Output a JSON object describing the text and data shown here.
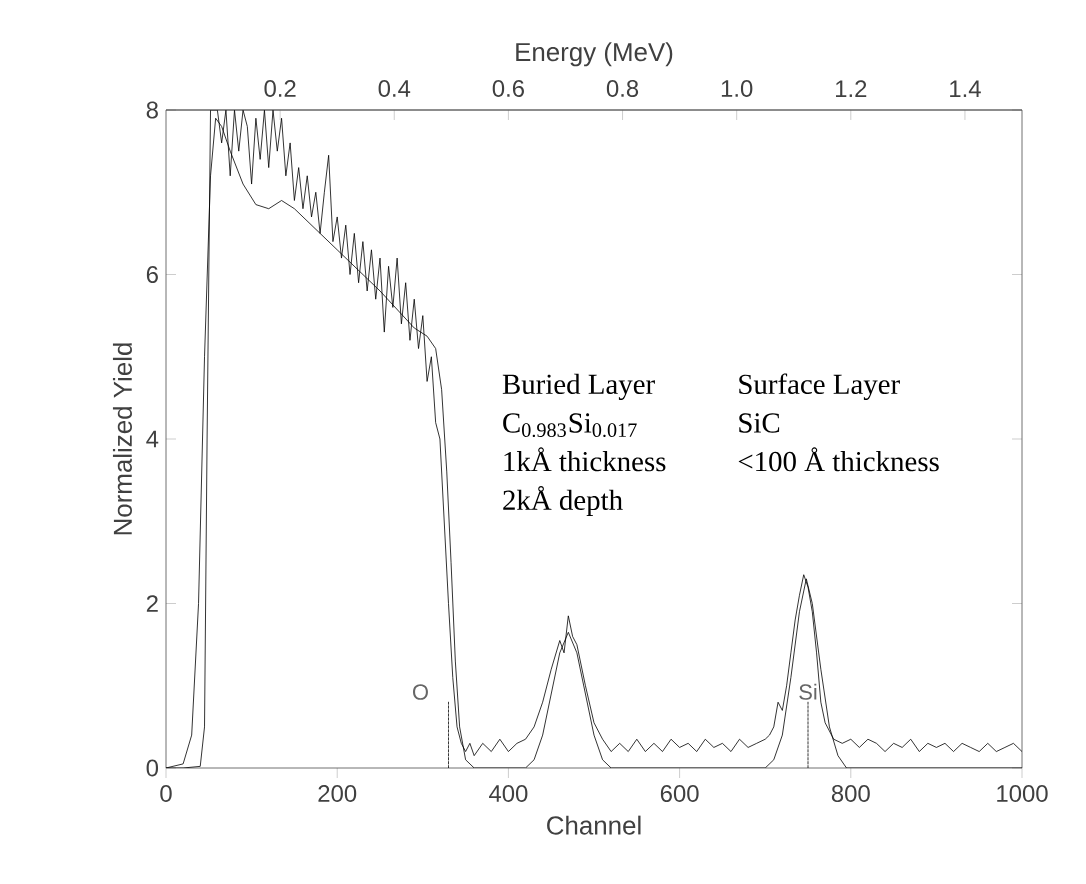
{
  "chart_data": {
    "type": "line",
    "xlabel": "Channel",
    "ylabel": "Normalized Yield",
    "x2label": "Energy (MeV)",
    "xlim": [
      0,
      1000
    ],
    "ylim": [
      0,
      8
    ],
    "xticks": [
      0,
      200,
      400,
      600,
      800,
      1000
    ],
    "yticks": [
      0,
      2,
      4,
      6,
      8
    ],
    "x2lim": [
      0,
      1.5
    ],
    "x2ticks": [
      0.2,
      0.4,
      0.6,
      0.8,
      {
        "value": 1.0,
        "label": "1.0"
      },
      1.2,
      1.4
    ],
    "series": [
      {
        "color": "#000000",
        "line_style": "solid",
        "x": [
          0,
          20,
          40,
          45,
          48,
          52,
          60,
          65,
          70,
          75,
          80,
          85,
          90,
          95,
          100,
          105,
          110,
          115,
          120,
          125,
          130,
          135,
          140,
          145,
          150,
          155,
          160,
          165,
          170,
          175,
          180,
          185,
          190,
          195,
          200,
          205,
          210,
          215,
          220,
          225,
          230,
          235,
          240,
          245,
          250,
          255,
          260,
          265,
          270,
          275,
          280,
          285,
          290,
          295,
          300,
          305,
          310,
          315,
          320,
          325,
          330,
          335,
          340,
          345,
          350,
          355,
          360,
          370,
          380,
          390,
          400,
          410,
          420,
          430,
          440,
          450,
          460,
          465,
          470,
          475,
          480,
          490,
          500,
          510,
          520,
          530,
          540,
          550,
          560,
          570,
          580,
          590,
          600,
          610,
          620,
          630,
          640,
          650,
          660,
          670,
          680,
          690,
          700,
          705,
          710,
          715,
          720,
          725,
          730,
          735,
          740,
          745,
          750,
          755,
          760,
          765,
          770,
          775,
          780,
          790,
          800,
          810,
          820,
          830,
          840,
          850,
          860,
          870,
          880,
          890,
          900,
          910,
          920,
          930,
          940,
          950,
          960,
          970,
          980,
          990,
          1000
        ],
        "values": [
          0,
          0,
          0.02,
          0.5,
          4,
          8,
          8,
          7.6,
          8,
          7.2,
          8,
          7.5,
          8,
          7.8,
          7.1,
          7.9,
          7.4,
          8,
          7.3,
          8,
          7.5,
          7.9,
          7.2,
          7.6,
          6.9,
          7.3,
          6.8,
          7.2,
          6.7,
          7.0,
          6.5,
          7.0,
          7.45,
          6.4,
          6.7,
          6.2,
          6.6,
          6.0,
          6.5,
          5.9,
          6.4,
          5.8,
          6.3,
          5.7,
          6.2,
          5.3,
          6.1,
          5.6,
          6.2,
          5.4,
          5.9,
          5.2,
          5.7,
          5.1,
          5.5,
          4.7,
          5.0,
          4.2,
          4.0,
          3.0,
          2.0,
          1.1,
          0.5,
          0.3,
          0.2,
          0.3,
          0.15,
          0.3,
          0.2,
          0.35,
          0.2,
          0.3,
          0.35,
          0.5,
          0.8,
          1.2,
          1.55,
          1.4,
          1.85,
          1.6,
          1.5,
          1.0,
          0.55,
          0.35,
          0.2,
          0.3,
          0.2,
          0.35,
          0.2,
          0.3,
          0.2,
          0.35,
          0.25,
          0.3,
          0.2,
          0.35,
          0.25,
          0.3,
          0.2,
          0.35,
          0.25,
          0.3,
          0.35,
          0.4,
          0.5,
          0.8,
          0.7,
          1.0,
          1.4,
          1.8,
          2.1,
          2.35,
          2.2,
          1.9,
          1.4,
          0.8,
          0.55,
          0.45,
          0.35,
          0.3,
          0.35,
          0.25,
          0.35,
          0.3,
          0.2,
          0.3,
          0.25,
          0.35,
          0.2,
          0.3,
          0.25,
          0.3,
          0.2,
          0.3,
          0.25,
          0.2,
          0.3,
          0.2,
          0.25,
          0.3,
          0.2
        ]
      },
      {
        "color": "#000000",
        "line_style": "solid",
        "x": [
          0,
          20,
          30,
          38,
          45,
          52,
          58,
          65,
          75,
          90,
          105,
          120,
          135,
          150,
          200,
          250,
          290,
          305,
          315,
          322,
          328,
          333,
          338,
          343,
          350,
          360,
          420,
          430,
          440,
          450,
          460,
          470,
          480,
          490,
          500,
          510,
          520,
          700,
          710,
          720,
          730,
          740,
          748,
          755,
          765,
          775,
          785,
          795,
          1000
        ],
        "values": [
          0,
          0.05,
          0.4,
          2,
          5,
          7.2,
          7.9,
          7.8,
          7.5,
          7.1,
          6.85,
          6.8,
          6.9,
          6.8,
          6.3,
          5.8,
          5.35,
          5.25,
          5.1,
          4.6,
          3.6,
          2.5,
          1.3,
          0.5,
          0.1,
          0,
          0,
          0.1,
          0.4,
          0.9,
          1.4,
          1.65,
          1.4,
          0.9,
          0.4,
          0.1,
          0,
          0,
          0.1,
          0.4,
          1.1,
          1.9,
          2.3,
          2.0,
          1.2,
          0.5,
          0.15,
          0,
          0
        ]
      },
      {
        "color": "#000000",
        "line_style": "dotted",
        "x": [
          330,
          330
        ],
        "values": [
          0,
          0.8
        ]
      },
      {
        "color": "#000000",
        "line_style": "dotted",
        "x": [
          750,
          750
        ],
        "values": [
          0,
          0.8
        ]
      }
    ],
    "annotations": [
      "Buried Layer",
      "C$_{0.983}$Si$_{0.017}$",
      "1kÅ thickness",
      "2kÅ depth",
      "Surface Layer",
      "SiC",
      "<100 Å thickness",
      "O",
      "Si"
    ]
  }
}
